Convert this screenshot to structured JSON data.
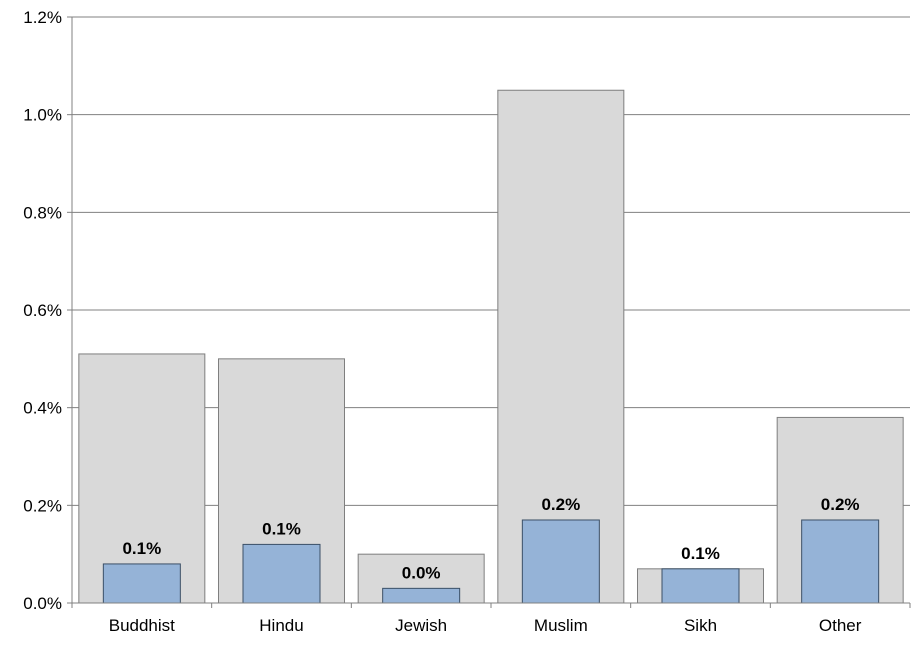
{
  "chart_data": {
    "type": "bar",
    "title": "",
    "xlabel": "",
    "ylabel": "",
    "ylim": [
      0,
      1.2
    ],
    "y_ticks": [
      "0.0%",
      "0.2%",
      "0.4%",
      "0.6%",
      "0.8%",
      "1.0%",
      "1.2%"
    ],
    "y_tick_values": [
      0,
      0.2,
      0.4,
      0.6,
      0.8,
      1.0,
      1.2
    ],
    "grid": true,
    "legend": "none",
    "categories": [
      "Buddhist",
      "Hindu",
      "Jewish",
      "Muslim",
      "Sikh",
      "Other"
    ],
    "series": [
      {
        "values": [
          0.51,
          0.5,
          0.1,
          1.05,
          0.07,
          0.38
        ],
        "color": "#d9d9d9",
        "border": "#7f7f7f"
      },
      {
        "values": [
          0.08,
          0.12,
          0.03,
          0.17,
          0.07,
          0.17
        ],
        "color": "#95b3d7",
        "border": "#3b4f66",
        "data_labels": [
          "0.1%",
          "0.1%",
          "0.0%",
          "0.2%",
          "0.1%",
          "0.2%"
        ]
      }
    ]
  }
}
